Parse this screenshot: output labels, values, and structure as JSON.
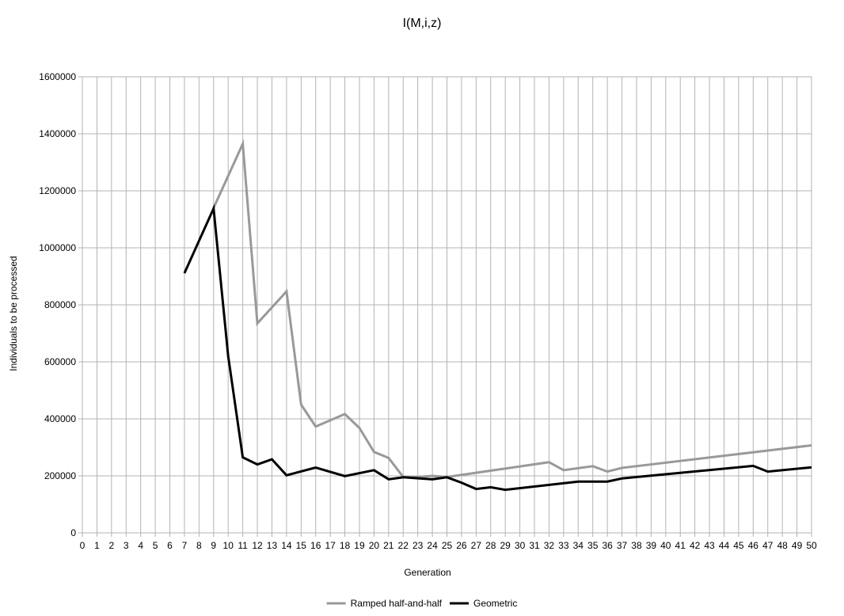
{
  "chart_data": {
    "type": "line",
    "title": "I(M,i,z)",
    "xlabel": "Generation",
    "ylabel": "Individuals to be processed",
    "x": [
      0,
      1,
      2,
      3,
      4,
      5,
      6,
      7,
      8,
      9,
      10,
      11,
      12,
      13,
      14,
      15,
      16,
      17,
      18,
      19,
      20,
      21,
      22,
      23,
      24,
      25,
      26,
      27,
      28,
      29,
      30,
      31,
      32,
      33,
      34,
      35,
      36,
      37,
      38,
      39,
      40,
      41,
      42,
      43,
      44,
      45,
      46,
      47,
      48,
      49,
      50
    ],
    "ylim": [
      0,
      1600000
    ],
    "yticks": [
      0,
      200000,
      400000,
      600000,
      800000,
      1000000,
      1200000,
      1400000,
      1600000
    ],
    "grid": true,
    "legend_position": "bottom",
    "series": [
      {
        "name": "Ramped half-and-half",
        "color": "#999999",
        "points": [
          [
            9,
            1140000
          ],
          [
            11,
            1365000
          ],
          [
            12,
            735000
          ],
          [
            14,
            847000
          ],
          [
            15,
            450000
          ],
          [
            16,
            373000
          ],
          [
            18,
            417000
          ],
          [
            19,
            368000
          ],
          [
            20,
            284000
          ],
          [
            21,
            263000
          ],
          [
            22,
            196000
          ],
          [
            23,
            196000
          ],
          [
            24,
            200000
          ],
          [
            25,
            196000
          ],
          [
            32,
            248000
          ],
          [
            33,
            220000
          ],
          [
            35,
            234000
          ],
          [
            36,
            215000
          ],
          [
            37,
            228000
          ],
          [
            50,
            307000
          ]
        ]
      },
      {
        "name": "Geometric",
        "color": "#000000",
        "points": [
          [
            7,
            911000
          ],
          [
            9,
            1138000
          ],
          [
            10,
            620000
          ],
          [
            11,
            265000
          ],
          [
            12,
            240000
          ],
          [
            13,
            258000
          ],
          [
            14,
            202000
          ],
          [
            16,
            229000
          ],
          [
            18,
            199000
          ],
          [
            20,
            220000
          ],
          [
            21,
            188000
          ],
          [
            22,
            195000
          ],
          [
            24,
            188000
          ],
          [
            25,
            195000
          ],
          [
            26,
            176000
          ],
          [
            27,
            154000
          ],
          [
            28,
            160000
          ],
          [
            29,
            151000
          ],
          [
            34,
            180000
          ],
          [
            36,
            180000
          ],
          [
            37,
            191000
          ],
          [
            46,
            235000
          ],
          [
            47,
            215000
          ],
          [
            50,
            230000
          ]
        ]
      }
    ]
  }
}
